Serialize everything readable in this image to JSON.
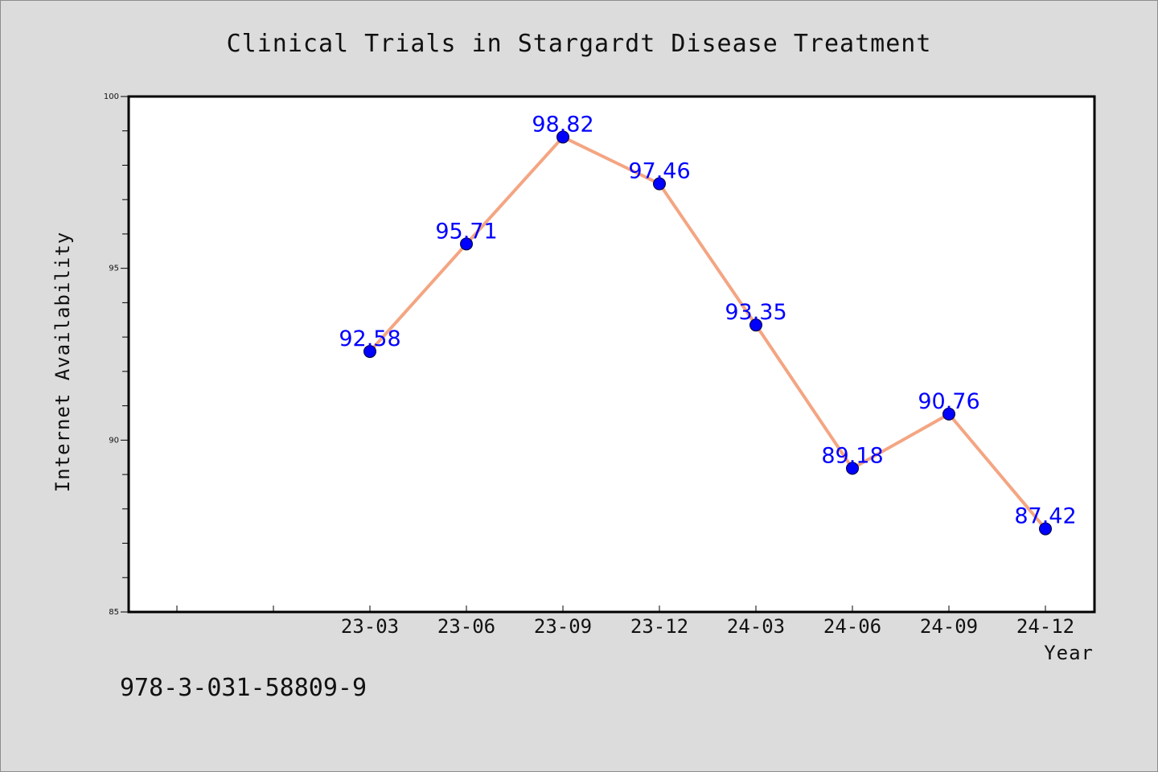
{
  "chart_data": {
    "type": "line",
    "title": "Clinical Trials in Stargardt Disease Treatment",
    "xlabel": "Year",
    "ylabel": "Internet Availability",
    "categories": [
      "23-03",
      "23-06",
      "23-09",
      "23-12",
      "24-03",
      "24-06",
      "24-09",
      "24-12"
    ],
    "series": [
      {
        "values": [
          92.58,
          95.71,
          98.82,
          97.46,
          93.35,
          89.18,
          90.76,
          87.42
        ],
        "line_color": "#f4a582",
        "marker_color": "#0000ff",
        "label_color": "#0000ff"
      }
    ],
    "data_labels": [
      "92.58",
      "95.71",
      "98.82",
      "97.46",
      "93.35",
      "89.18",
      "90.76",
      "87.42"
    ],
    "ylim": [
      85,
      100
    ],
    "yticks": [
      "85",
      "90",
      "95",
      "100"
    ],
    "grid": false,
    "legend": "none"
  },
  "footer": {
    "isbn": "978-3-031-58809-9"
  },
  "colors": {
    "background": "#dcdcdc",
    "plot_background": "#ffffff",
    "line": "#f4a582",
    "marker": "#0000ff",
    "data_label": "#0000ff"
  }
}
